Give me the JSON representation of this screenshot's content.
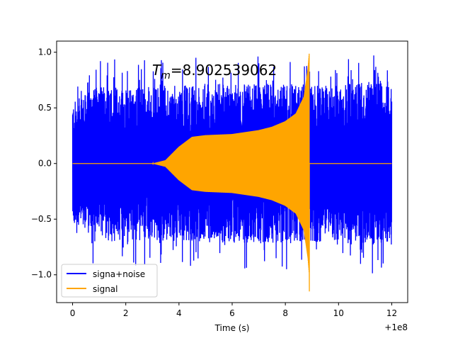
{
  "chart_data": {
    "type": "line",
    "title": "",
    "annotation": "$T_m$=8.902539062",
    "annotation_main": "T",
    "annotation_sub": "m",
    "annotation_rest": "=8.902539062",
    "xlabel": "Time (s)",
    "ylabel": "",
    "x_offset_label": "+1e8",
    "xlim": [
      -0.6,
      12.6
    ],
    "ylim": [
      -1.25,
      1.1
    ],
    "xticks": [
      0,
      2,
      4,
      6,
      8,
      10,
      12
    ],
    "xtick_labels": [
      "0",
      "2",
      "4",
      "6",
      "8",
      "10",
      "12"
    ],
    "yticks": [
      -1.0,
      -0.5,
      0.0,
      0.5,
      1.0
    ],
    "ytick_labels": [
      "−1.0",
      "−0.5",
      "0.0",
      "0.5",
      "1.0"
    ],
    "grid": false,
    "legend_position": "lower-left",
    "merger_time": 8.902539062,
    "series": [
      {
        "name": "signa+noise",
        "color": "#0000ff",
        "x_range": [
          0.0,
          12.0
        ],
        "envelope_points": [
          [
            0.0,
            0.55
          ],
          [
            1.0,
            0.7
          ],
          [
            2.0,
            0.7
          ],
          [
            4.0,
            0.7
          ],
          [
            6.0,
            0.72
          ],
          [
            8.0,
            0.72
          ],
          [
            9.5,
            0.7
          ],
          [
            12.0,
            0.75
          ]
        ],
        "max_y": 1.0,
        "min_y": -1.08
      },
      {
        "name": "signal",
        "color": "#ffa500",
        "envelope_points": [
          [
            0.0,
            0.0
          ],
          [
            3.0,
            0.0
          ],
          [
            3.5,
            0.03
          ],
          [
            4.0,
            0.15
          ],
          [
            4.5,
            0.24
          ],
          [
            5.0,
            0.255
          ],
          [
            6.0,
            0.265
          ],
          [
            7.0,
            0.3
          ],
          [
            7.5,
            0.33
          ],
          [
            8.0,
            0.38
          ],
          [
            8.4,
            0.45
          ],
          [
            8.7,
            0.6
          ],
          [
            8.85,
            0.85
          ],
          [
            8.9,
            1.0
          ]
        ],
        "post_merger_y": 0.0,
        "min_y_at_merger": -1.15
      }
    ]
  }
}
